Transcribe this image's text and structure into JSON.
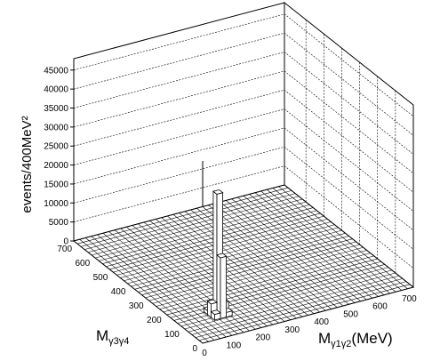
{
  "chart_data": {
    "type": "3d-lego-histogram",
    "title": "",
    "zlabel": "events/400MeV²",
    "xlabel": {
      "main": "M",
      "sub": "γ1γ2",
      "unit": "(MeV)"
    },
    "ylabel": {
      "main": "M",
      "sub": "γ3γ4"
    },
    "x_ticks": [
      "0",
      "100",
      "200",
      "300",
      "400",
      "500",
      "600",
      "700"
    ],
    "y_ticks": [
      "0",
      "100",
      "200",
      "300",
      "400",
      "500",
      "600",
      "700"
    ],
    "z_ticks": [
      "0",
      "5000",
      "10000",
      "15000",
      "20000",
      "25000",
      "30000",
      "35000",
      "40000",
      "45000"
    ],
    "xlim": [
      0,
      720
    ],
    "ylim": [
      0,
      720
    ],
    "zlim": [
      0,
      48000
    ],
    "bin_size_mev": 20,
    "grid": true,
    "peaks": [
      {
        "x": 135,
        "y": 135,
        "value": 32000
      },
      {
        "x": 135,
        "y": 115,
        "value": 16000
      },
      {
        "x": 115,
        "y": 135,
        "value": 3500
      },
      {
        "x": 155,
        "y": 135,
        "value": 3000
      },
      {
        "x": 135,
        "y": 155,
        "value": 2500
      },
      {
        "x": 115,
        "y": 115,
        "value": 1500
      },
      {
        "x": 155,
        "y": 115,
        "value": 1200
      },
      {
        "x": 115,
        "y": 155,
        "value": 1000
      }
    ]
  }
}
